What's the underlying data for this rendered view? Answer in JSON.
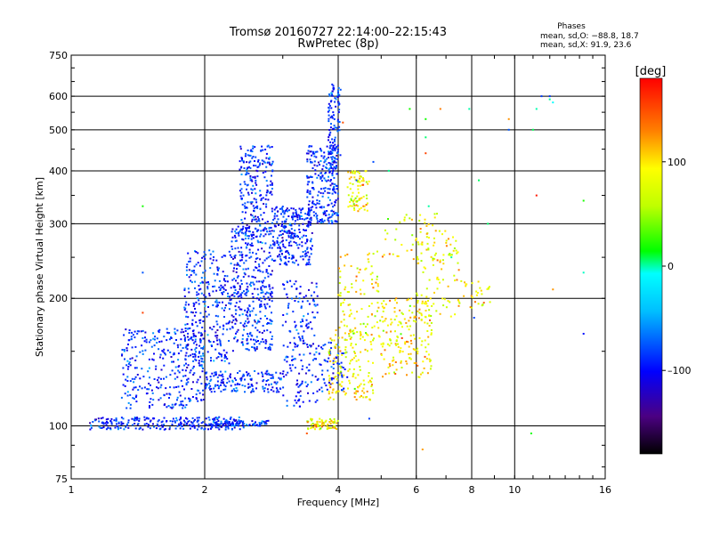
{
  "chart_data": {
    "type": "scatter",
    "title": "Tromsø 20160727 22:14:00–22:15:43",
    "subtitle": "RwPretec (8p)",
    "xlabel": "Frequency [MHz]",
    "ylabel": "Stationary phase Virtual Height [km]",
    "x_scale": "log",
    "y_scale": "log",
    "xlim": [
      1,
      16
    ],
    "ylim": [
      75,
      750
    ],
    "x_ticks": [
      1,
      2,
      4,
      6,
      8,
      10,
      16
    ],
    "x_tick_labels": [
      "1",
      "2",
      "4",
      "6",
      "8",
      "10",
      "16"
    ],
    "y_ticks": [
      75,
      100,
      200,
      300,
      400,
      500,
      600,
      750
    ],
    "y_tick_labels": [
      "75",
      "100",
      "200",
      "300",
      "400",
      "500",
      "600",
      "750"
    ],
    "grid": true,
    "phases": {
      "header": "Phases",
      "o_line": "mean, sd,O: −88.8, 18.7",
      "x_line": "mean, sd,X:  91.9, 23.6"
    },
    "colorbar": {
      "label": "[deg]",
      "range": [
        -180,
        180
      ],
      "ticks": [
        100,
        0,
        -100
      ],
      "tick_labels": [
        "100",
        "0",
        "–100"
      ]
    },
    "series": [
      {
        "mode": "O",
        "phase_mean": -88.8,
        "phase_sd": 18.7,
        "clusters": [
          {
            "x": [
              1.1,
              2.45
            ],
            "y": [
              98,
              105
            ],
            "n": 260
          },
          {
            "x": [
              1.3,
              2.0
            ],
            "y": [
              110,
              170
            ],
            "n": 320
          },
          {
            "x": [
              1.8,
              2.3
            ],
            "y": [
              140,
              260
            ],
            "n": 280
          },
          {
            "x": [
              2.3,
              2.85
            ],
            "y": [
              150,
              300
            ],
            "n": 380
          },
          {
            "x": [
              2.4,
              2.85
            ],
            "y": [
              280,
              460
            ],
            "n": 220
          },
          {
            "x": [
              2.0,
              3.0
            ],
            "y": [
              120,
              135
            ],
            "n": 160
          },
          {
            "x": [
              2.85,
              3.5
            ],
            "y": [
              240,
              330
            ],
            "n": 260
          },
          {
            "x": [
              3.0,
              3.6
            ],
            "y": [
              110,
              220
            ],
            "n": 180
          },
          {
            "x": [
              3.4,
              4.0
            ],
            "y": [
              300,
              460
            ],
            "n": 240
          },
          {
            "x": [
              3.8,
              4.05
            ],
            "y": [
              400,
              640
            ],
            "n": 120
          },
          {
            "x": [
              3.6,
              4.2
            ],
            "y": [
              120,
              160
            ],
            "n": 70
          },
          {
            "x": [
              2.1,
              2.8
            ],
            "y": [
              100,
              103
            ],
            "n": 60
          }
        ]
      },
      {
        "mode": "X",
        "phase_mean": 91.9,
        "phase_sd": 23.6,
        "clusters": [
          {
            "x": [
              3.4,
              4.0
            ],
            "y": [
              98,
              104
            ],
            "n": 70
          },
          {
            "x": [
              3.8,
              4.8
            ],
            "y": [
              115,
              170
            ],
            "n": 150
          },
          {
            "x": [
              4.2,
              4.7
            ],
            "y": [
              320,
              400
            ],
            "n": 80
          },
          {
            "x": [
              4.0,
              5.0
            ],
            "y": [
              160,
              260
            ],
            "n": 100
          },
          {
            "x": [
              5.0,
              6.5
            ],
            "y": [
              130,
              200
            ],
            "n": 180
          },
          {
            "x": [
              6.0,
              7.5
            ],
            "y": [
              180,
              280
            ],
            "n": 90
          },
          {
            "x": [
              5.0,
              7.0
            ],
            "y": [
              240,
              320
            ],
            "n": 50
          },
          {
            "x": [
              7.5,
              9.0
            ],
            "y": [
              190,
              220
            ],
            "n": 30
          }
        ]
      },
      {
        "mode": "scattered",
        "points": [
          [
            1.45,
            330
          ],
          [
            1.45,
            230
          ],
          [
            1.45,
            185
          ],
          [
            4.1,
            520
          ],
          [
            4.4,
            380
          ],
          [
            4.8,
            420
          ],
          [
            5.2,
            400
          ],
          [
            5.8,
            560
          ],
          [
            6.3,
            530
          ],
          [
            6.3,
            480
          ],
          [
            6.3,
            440
          ],
          [
            6.8,
            560
          ],
          [
            7.9,
            560
          ],
          [
            8.3,
            380
          ],
          [
            8.7,
            300
          ],
          [
            9.7,
            530
          ],
          [
            9.7,
            500
          ],
          [
            11.0,
            500
          ],
          [
            11.2,
            560
          ],
          [
            11.2,
            350
          ],
          [
            11.5,
            600
          ],
          [
            12.0,
            600
          ],
          [
            12.0,
            590
          ],
          [
            12.2,
            580
          ],
          [
            12.2,
            210
          ],
          [
            14.3,
            340
          ],
          [
            14.3,
            230
          ],
          [
            14.3,
            165
          ],
          [
            10.9,
            96
          ],
          [
            6.2,
            88
          ],
          [
            3.4,
            96
          ],
          [
            4.7,
            104
          ],
          [
            8.1,
            180
          ],
          [
            6.4,
            330
          ],
          [
            7.2,
            250
          ]
        ]
      }
    ]
  }
}
